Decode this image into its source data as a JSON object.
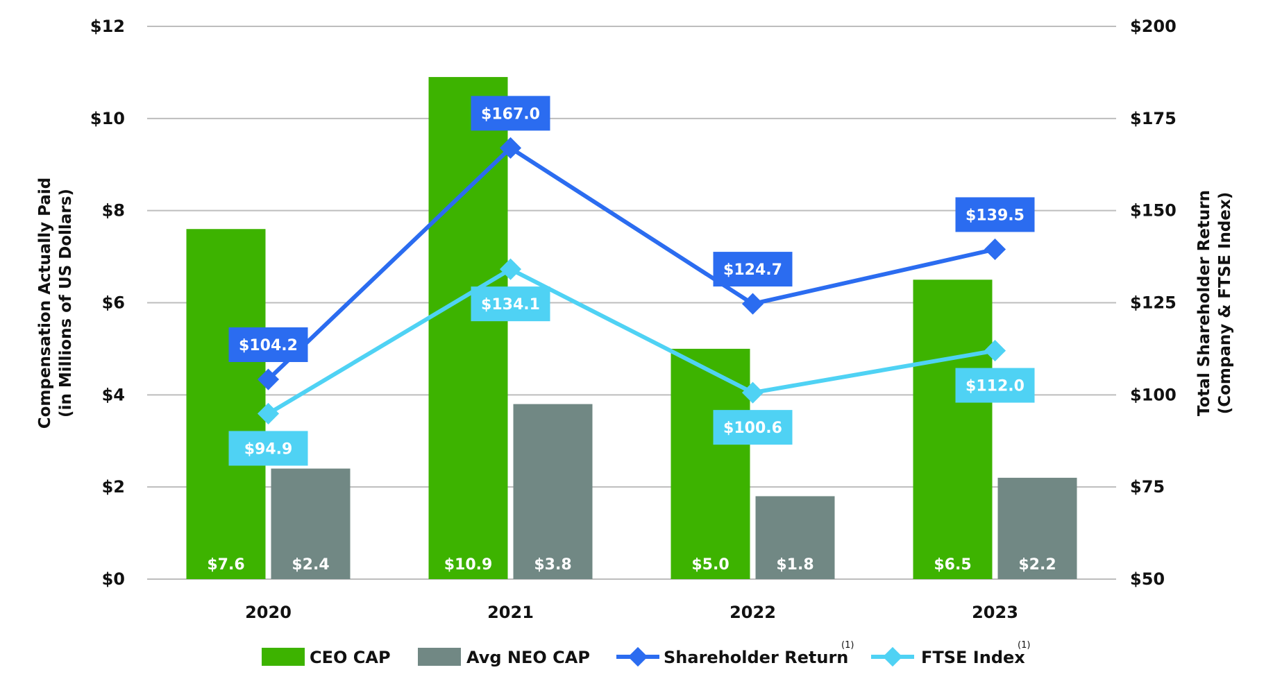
{
  "chart_data": {
    "type": "bar+line",
    "categories": [
      "2020",
      "2021",
      "2022",
      "2023"
    ],
    "left_axis": {
      "title_line1": "Compensation Actually Paid",
      "title_line2": "(in Millions of US Dollars)",
      "range": [
        0,
        12
      ],
      "ticks": [
        "$0",
        "$2",
        "$4",
        "$6",
        "$8",
        "$10",
        "$12"
      ],
      "tick_values": [
        0,
        2,
        4,
        6,
        8,
        10,
        12
      ]
    },
    "right_axis": {
      "title_line1": "Total Shareholder Return",
      "title_line2": "(Company & FTSE Index)",
      "range": [
        50,
        200
      ],
      "ticks": [
        "$50",
        "$75",
        "$100",
        "$125",
        "$150",
        "$175",
        "$200"
      ],
      "tick_values": [
        50,
        75,
        100,
        125,
        150,
        175,
        200
      ]
    },
    "grid": true,
    "legend_position": "bottom",
    "bar_series": [
      {
        "name": "CEO CAP",
        "color": "#3db300",
        "values": [
          7.6,
          10.9,
          5.0,
          6.5
        ],
        "labels": [
          "$7.6",
          "$10.9",
          "$5.0",
          "$6.5"
        ]
      },
      {
        "name": "Avg NEO CAP",
        "color": "#718884",
        "values": [
          2.4,
          3.8,
          1.8,
          2.2
        ],
        "labels": [
          "$2.4",
          "$3.8",
          "$1.8",
          "$2.2"
        ]
      }
    ],
    "line_series": [
      {
        "name": "Shareholder Return",
        "footnote": "(1)",
        "color": "#2b6cf0",
        "values": [
          104.2,
          167.0,
          124.7,
          139.5
        ],
        "labels": [
          "$104.2",
          "$167.0",
          "$124.7",
          "$139.5"
        ],
        "label_side": "above"
      },
      {
        "name": "FTSE Index",
        "footnote": "(1)",
        "color": "#4fd2f4",
        "values": [
          94.9,
          134.1,
          100.6,
          112.0
        ],
        "labels": [
          "$94.9",
          "$134.1",
          "$100.6",
          "$112.0"
        ],
        "label_side": "below"
      }
    ]
  }
}
